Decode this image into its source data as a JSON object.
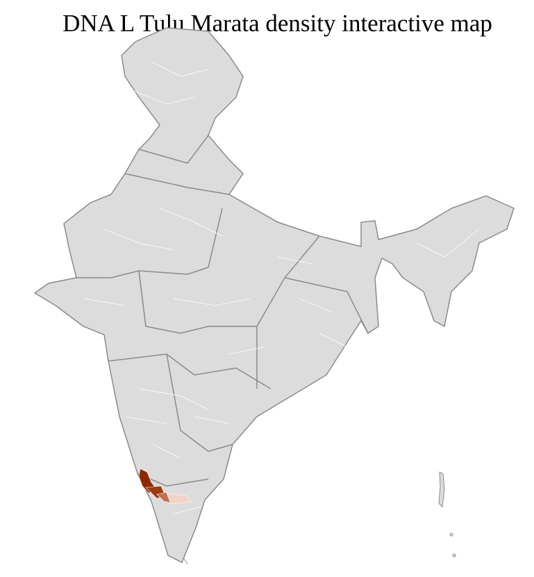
{
  "title": "DNA L Tulu Marata density interactive map",
  "map": {
    "base_fill": "#dcdcdc",
    "district_border": "#ffffff",
    "state_border": "#8a8a8a",
    "density_colors": {
      "highest": "#8b2a00",
      "high": "#9e3a14",
      "medium": "#c0704f",
      "low": "#f1d3c6"
    }
  }
}
